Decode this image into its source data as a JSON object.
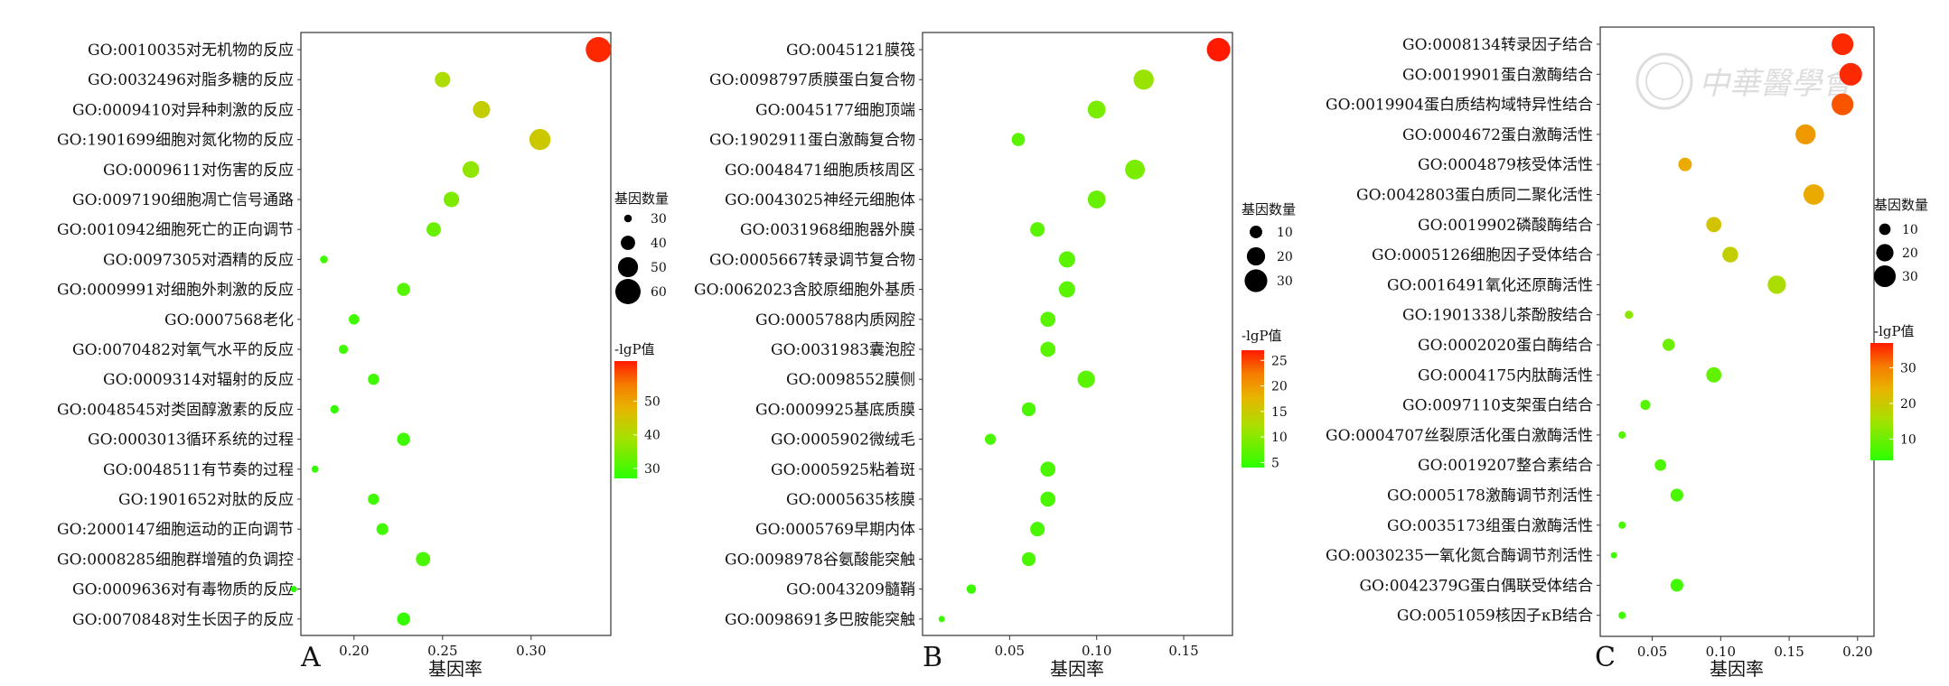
{
  "watermark": {
    "text": "中華醫學會"
  },
  "legend_titles": {
    "size": "基因数量",
    "color": "-lgP值"
  },
  "chart_data": [
    {
      "type": "scatter",
      "panel_label": "A",
      "xlabel": "基因率",
      "xticks": [
        "0.20",
        "0.25",
        "0.30"
      ],
      "xlim": [
        0.17,
        0.345
      ],
      "size_legend": [
        30,
        40,
        50,
        60
      ],
      "color_legend": {
        "ticks": [
          30,
          40,
          50
        ],
        "range": [
          27,
          62
        ]
      },
      "terms": [
        {
          "label": "GO:0010035对无机物的反应",
          "x": 0.338,
          "size": 60,
          "color": 61
        },
        {
          "label": "GO:0032496对脂多糖的反应",
          "x": 0.25,
          "size": 42,
          "color": 40
        },
        {
          "label": "GO:0009410对异种刺激的反应",
          "x": 0.272,
          "size": 45,
          "color": 43
        },
        {
          "label": "GO:1901699细胞对氮化物的反应",
          "x": 0.305,
          "size": 52,
          "color": 44
        },
        {
          "label": "GO:0009611对伤害的反应",
          "x": 0.266,
          "size": 44,
          "color": 37
        },
        {
          "label": "GO:0097190细胞凋亡信号通路",
          "x": 0.255,
          "size": 42,
          "color": 35
        },
        {
          "label": "GO:0010942细胞死亡的正向调节",
          "x": 0.245,
          "size": 40,
          "color": 33
        },
        {
          "label": "GO:0097305对酒精的反应",
          "x": 0.183,
          "size": 30,
          "color": 29
        },
        {
          "label": "GO:0009991对细胞外刺激的反应",
          "x": 0.228,
          "size": 38,
          "color": 31
        },
        {
          "label": "GO:0007568老化",
          "x": 0.2,
          "size": 34,
          "color": 29
        },
        {
          "label": "GO:0070482对氧气水平的反应",
          "x": 0.194,
          "size": 32,
          "color": 29
        },
        {
          "label": "GO:0009314对辐射的反应",
          "x": 0.211,
          "size": 35,
          "color": 29
        },
        {
          "label": "GO:0048545对类固醇激素的反应",
          "x": 0.189,
          "size": 31,
          "color": 28
        },
        {
          "label": "GO:0003013循环系统的过程",
          "x": 0.228,
          "size": 38,
          "color": 29
        },
        {
          "label": "GO:0048511有节奏的过程",
          "x": 0.178,
          "size": 29,
          "color": 28
        },
        {
          "label": "GO:1901652对肽的反应",
          "x": 0.211,
          "size": 35,
          "color": 29
        },
        {
          "label": "GO:2000147细胞运动的正向调节",
          "x": 0.216,
          "size": 36,
          "color": 29
        },
        {
          "label": "GO:0008285细胞群增殖的负调控",
          "x": 0.239,
          "size": 40,
          "color": 30
        },
        {
          "label": "GO:0009636对有毒物质的反应",
          "x": 0.166,
          "size": 28,
          "color": 27
        },
        {
          "label": "GO:0070848对生长因子的反应",
          "x": 0.228,
          "size": 38,
          "color": 28
        }
      ]
    },
    {
      "type": "scatter",
      "panel_label": "B",
      "xlabel": "基因率",
      "xticks": [
        "0.05",
        "0.10",
        "0.15"
      ],
      "xlim": [
        0.0,
        0.178
      ],
      "size_legend": [
        10,
        20,
        30
      ],
      "color_legend": {
        "ticks": [
          5,
          10,
          15,
          20,
          25
        ],
        "range": [
          4,
          27
        ]
      },
      "terms": [
        {
          "label": "GO:0045121膜筏",
          "x": 0.17,
          "size": 32,
          "color": 27
        },
        {
          "label": "GO:0098797质膜蛋白复合物",
          "x": 0.127,
          "size": 24,
          "color": 11
        },
        {
          "label": "GO:0045177细胞顶端",
          "x": 0.1,
          "size": 19,
          "color": 9
        },
        {
          "label": "GO:1902911蛋白激酶复合物",
          "x": 0.055,
          "size": 11,
          "color": 7
        },
        {
          "label": "GO:0048471细胞质核周区",
          "x": 0.122,
          "size": 23,
          "color": 9
        },
        {
          "label": "GO:0043025神经元细胞体",
          "x": 0.1,
          "size": 19,
          "color": 8
        },
        {
          "label": "GO:0031968细胞器外膜",
          "x": 0.066,
          "size": 13,
          "color": 7
        },
        {
          "label": "GO:0005667转录调节复合物",
          "x": 0.083,
          "size": 16,
          "color": 7
        },
        {
          "label": "GO:0062023含胶原细胞外基质",
          "x": 0.083,
          "size": 16,
          "color": 7
        },
        {
          "label": "GO:0005788内质网腔",
          "x": 0.072,
          "size": 14,
          "color": 7
        },
        {
          "label": "GO:0031983囊泡腔",
          "x": 0.072,
          "size": 14,
          "color": 7
        },
        {
          "label": "GO:0098552膜侧",
          "x": 0.094,
          "size": 18,
          "color": 7
        },
        {
          "label": "GO:0009925基底质膜",
          "x": 0.061,
          "size": 12,
          "color": 6
        },
        {
          "label": "GO:0005902微绒毛",
          "x": 0.039,
          "size": 8,
          "color": 6
        },
        {
          "label": "GO:0005925粘着斑",
          "x": 0.072,
          "size": 14,
          "color": 6
        },
        {
          "label": "GO:0005635核膜",
          "x": 0.072,
          "size": 14,
          "color": 6
        },
        {
          "label": "GO:0005769早期内体",
          "x": 0.066,
          "size": 13,
          "color": 6
        },
        {
          "label": "GO:0098978谷氨酸能突触",
          "x": 0.061,
          "size": 12,
          "color": 6
        },
        {
          "label": "GO:0043209髓鞘",
          "x": 0.028,
          "size": 6,
          "color": 5
        },
        {
          "label": "GO:0098691多巴胺能突触",
          "x": 0.011,
          "size": 3,
          "color": 5
        }
      ]
    },
    {
      "type": "scatter",
      "panel_label": "C",
      "xlabel": "基因率",
      "xticks": [
        "0.05",
        "0.10",
        "0.15",
        "0.20"
      ],
      "xlim": [
        0.012,
        0.212
      ],
      "size_legend": [
        10,
        20,
        30
      ],
      "color_legend": {
        "ticks": [
          10,
          20,
          30
        ],
        "range": [
          4,
          37
        ]
      },
      "terms": [
        {
          "label": "GO:0008134转录因子结合",
          "x": 0.189,
          "size": 30,
          "color": 36
        },
        {
          "label": "GO:0019901蛋白激酶结合",
          "x": 0.195,
          "size": 32,
          "color": 36
        },
        {
          "label": "GO:0019904蛋白质结构域特异性结合",
          "x": 0.189,
          "size": 30,
          "color": 33
        },
        {
          "label": "GO:0004672蛋白激酶活性",
          "x": 0.162,
          "size": 26,
          "color": 27
        },
        {
          "label": "GO:0004879核受体活性",
          "x": 0.074,
          "size": 13,
          "color": 25
        },
        {
          "label": "GO:0042803蛋白质同二聚化活性",
          "x": 0.168,
          "size": 27,
          "color": 25
        },
        {
          "label": "GO:0019902磷酸酶结合",
          "x": 0.095,
          "size": 16,
          "color": 21
        },
        {
          "label": "GO:0005126细胞因子受体结合",
          "x": 0.107,
          "size": 17,
          "color": 19
        },
        {
          "label": "GO:0016491氧化还原酶活性",
          "x": 0.141,
          "size": 22,
          "color": 16
        },
        {
          "label": "GO:1901338儿茶酚胺结合",
          "x": 0.033,
          "size": 6,
          "color": 13
        },
        {
          "label": "GO:0002020蛋白酶结合",
          "x": 0.062,
          "size": 11,
          "color": 10
        },
        {
          "label": "GO:0004175内肽酶活性",
          "x": 0.095,
          "size": 16,
          "color": 9
        },
        {
          "label": "GO:0097110支架蛋白结合",
          "x": 0.045,
          "size": 8,
          "color": 8
        },
        {
          "label": "GO:0004707丝裂原活化蛋白激酶活性",
          "x": 0.028,
          "size": 5,
          "color": 8
        },
        {
          "label": "GO:0019207整合素结合",
          "x": 0.056,
          "size": 10,
          "color": 7
        },
        {
          "label": "GO:0005178激酶调节剂活性",
          "x": 0.068,
          "size": 12,
          "color": 7
        },
        {
          "label": "GO:0035173组蛋白激酶活性",
          "x": 0.028,
          "size": 5,
          "color": 7
        },
        {
          "label": "GO:0030235一氧化氮合酶调节剂活性",
          "x": 0.022,
          "size": 4,
          "color": 6
        },
        {
          "label": "GO:0042379G蛋白偶联受体结合",
          "x": 0.068,
          "size": 12,
          "color": 6
        },
        {
          "label": "GO:0051059核因子κB结合",
          "x": 0.028,
          "size": 5,
          "color": 6
        }
      ]
    }
  ]
}
